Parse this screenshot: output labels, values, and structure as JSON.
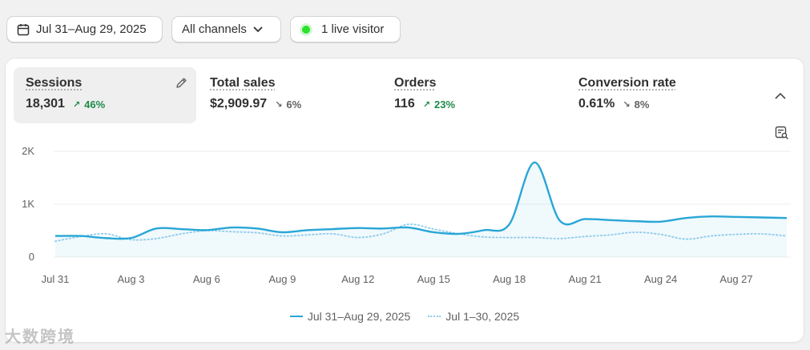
{
  "toolbar": {
    "date_range": "Jul 31–Aug 29, 2025",
    "channels": "All channels",
    "live_visitors": "1 live visitor"
  },
  "metrics": [
    {
      "label": "Sessions",
      "value": "18,301",
      "delta": "46%",
      "direction": "up"
    },
    {
      "label": "Total sales",
      "value": "$2,909.97",
      "delta": "6%",
      "direction": "down"
    },
    {
      "label": "Orders",
      "value": "116",
      "delta": "23%",
      "direction": "up"
    },
    {
      "label": "Conversion rate",
      "value": "0.61%",
      "delta": "8%",
      "direction": "down"
    }
  ],
  "legend": {
    "current": "Jul 31–Aug 29, 2025",
    "previous": "Jul 1–30, 2025"
  },
  "watermark": "大数跨境",
  "colors": {
    "current_line": "#29a6d6",
    "previous_line": "#8dcbea",
    "positive": "#1f8a49",
    "live_dot": "#29e22b"
  },
  "chart_data": {
    "type": "line",
    "title": "",
    "xlabel": "",
    "ylabel": "",
    "ylim": [
      0,
      2000
    ],
    "yticks": [
      0,
      1000,
      2000
    ],
    "ytick_labels": [
      "0",
      "1K",
      "2K"
    ],
    "x": [
      "Jul 31",
      "Aug 1",
      "Aug 2",
      "Aug 3",
      "Aug 4",
      "Aug 5",
      "Aug 6",
      "Aug 7",
      "Aug 8",
      "Aug 9",
      "Aug 10",
      "Aug 11",
      "Aug 12",
      "Aug 13",
      "Aug 14",
      "Aug 15",
      "Aug 16",
      "Aug 17",
      "Aug 18",
      "Aug 19",
      "Aug 20",
      "Aug 21",
      "Aug 22",
      "Aug 23",
      "Aug 24",
      "Aug 25",
      "Aug 26",
      "Aug 27",
      "Aug 28",
      "Aug 29"
    ],
    "xtick_labels": [
      "Jul 31",
      "Aug 3",
      "Aug 6",
      "Aug 9",
      "Aug 12",
      "Aug 15",
      "Aug 18",
      "Aug 21",
      "Aug 24",
      "Aug 27"
    ],
    "grid": true,
    "series": [
      {
        "name": "Jul 31–Aug 29, 2025",
        "style": "solid",
        "values": [
          400,
          400,
          360,
          360,
          540,
          530,
          510,
          560,
          540,
          470,
          510,
          530,
          550,
          540,
          560,
          470,
          440,
          510,
          620,
          1790,
          690,
          720,
          700,
          680,
          670,
          740,
          770,
          760,
          750,
          740
        ]
      },
      {
        "name": "Jul 1–30, 2025",
        "style": "dotted",
        "values": [
          300,
          390,
          440,
          330,
          350,
          440,
          500,
          480,
          460,
          400,
          420,
          440,
          370,
          440,
          620,
          530,
          440,
          380,
          370,
          370,
          350,
          390,
          420,
          470,
          430,
          340,
          400,
          430,
          440,
          400
        ]
      }
    ]
  }
}
